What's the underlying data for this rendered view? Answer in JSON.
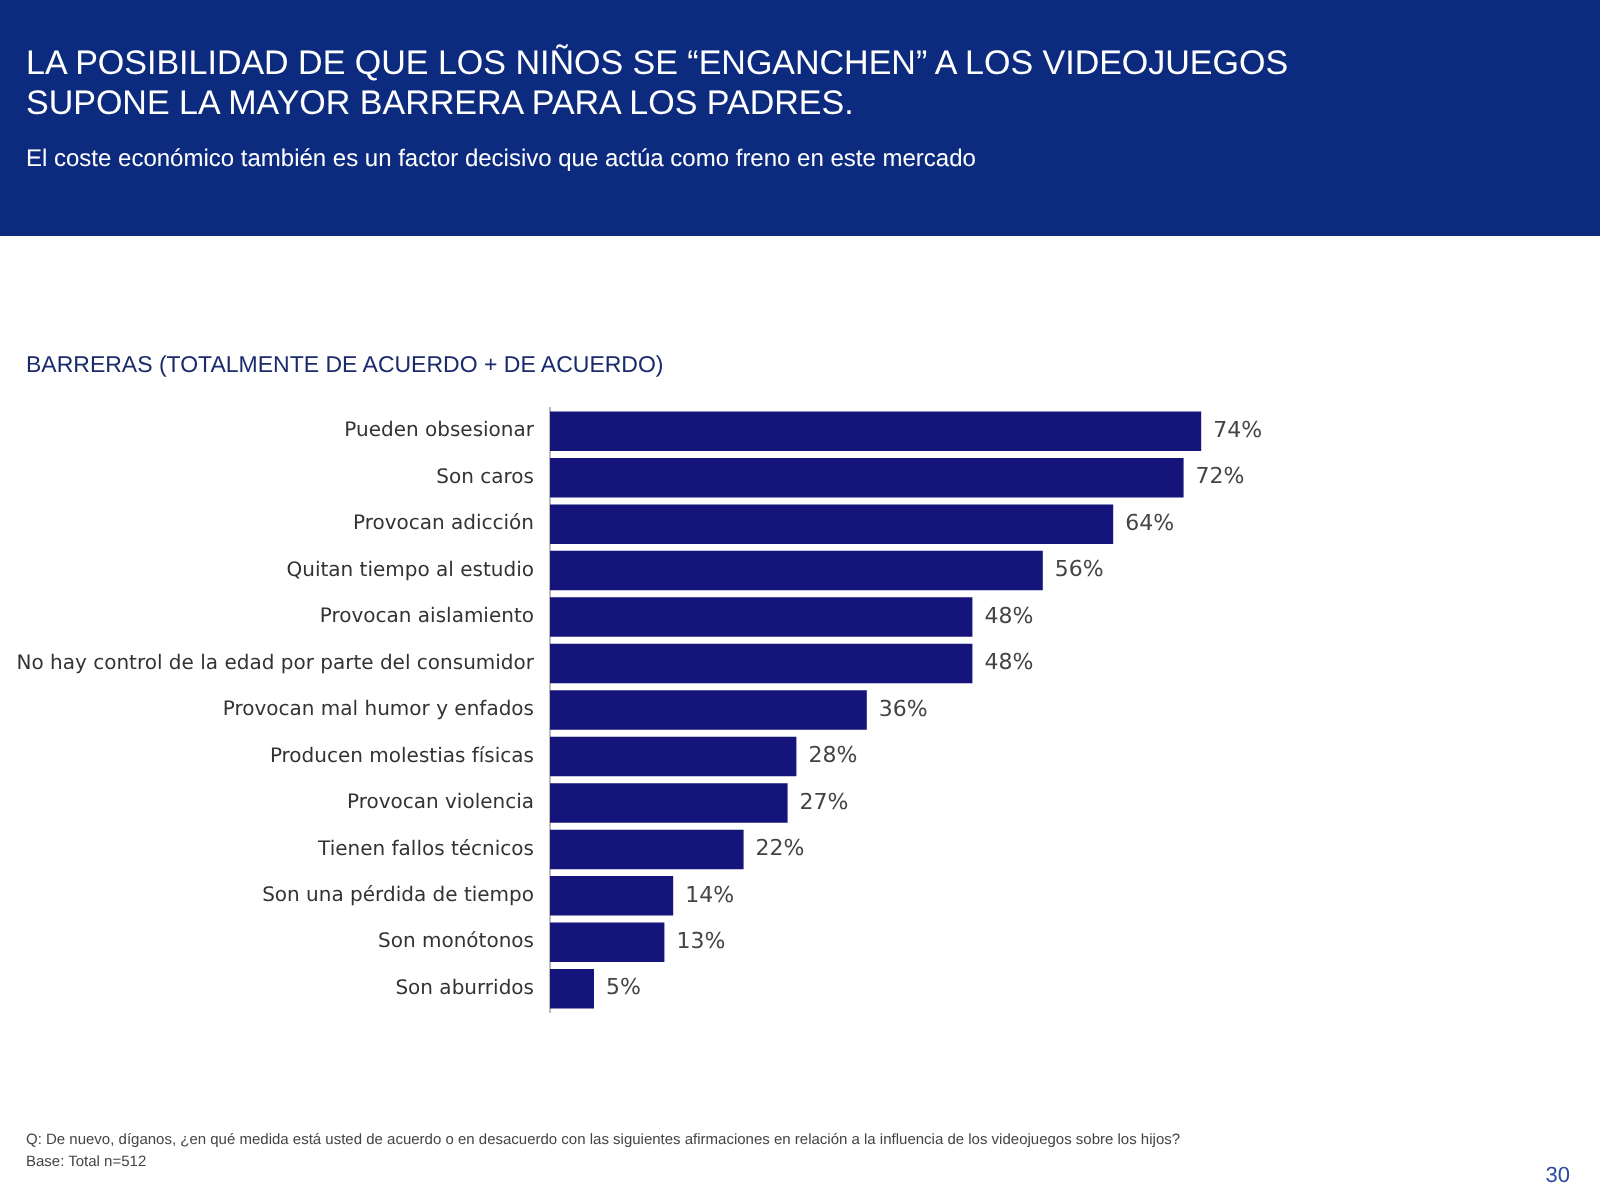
{
  "chart_data": {
    "type": "bar",
    "orientation": "horizontal",
    "title": "LA POSIBILIDAD DE QUE LOS NIÑOS SE “ENGANCHEN” A LOS VIDEOJUEGOS SUPONE LA MAYOR BARRERA PARA LOS PADRES.",
    "subtitle": "El coste económico también es un factor decisivo que actúa como freno en este mercado",
    "annotations": [
      "BARRERAS (TOTALMENTE DE ACUERDO + DE ACUERDO)",
      "Q:  De nuevo, díganos, ¿en qué medida está usted de acuerdo o en desacuerdo con las siguientes afirmaciones en relación a la influencia de los videojuegos sobre los hijos?",
      "Base:  Total n=512",
      "30"
    ],
    "categories": [
      "Pueden obsesionar",
      "Son caros",
      "Provocan adicción",
      "Quitan tiempo al estudio",
      "Provocan aislamiento",
      "No hay control de la edad por parte del consumidor",
      "Provocan mal humor y enfados",
      "Producen molestias físicas",
      "Provocan violencia",
      "Tienen fallos técnicos",
      "Son una pérdida de tiempo",
      "Son monótonos",
      "Son aburridos"
    ],
    "values": [
      74,
      72,
      64,
      56,
      48,
      48,
      36,
      28,
      27,
      22,
      14,
      13,
      5
    ],
    "value_labels": [
      "74%",
      "72%",
      "64%",
      "56%",
      "48%",
      "48%",
      "36%",
      "28%",
      "27%",
      "22%",
      "14%",
      "13%",
      "5%"
    ],
    "color": "#14147a",
    "tick_labels": "y",
    "grid": false,
    "legend": false
  }
}
